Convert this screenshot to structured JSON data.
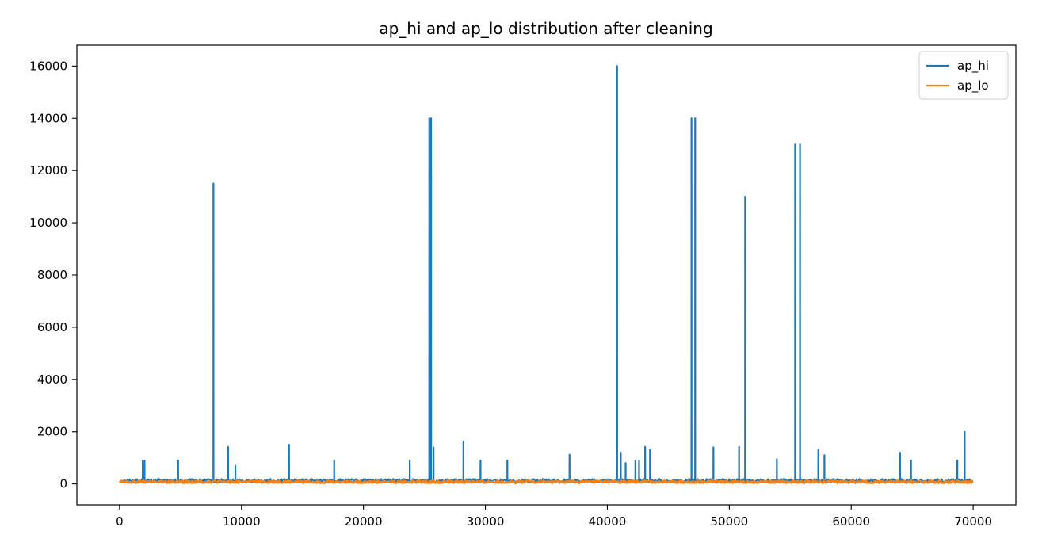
{
  "chart_data": {
    "type": "line",
    "title": "ap_hi and ap_lo distribution after cleaning",
    "xlabel": "",
    "ylabel": "",
    "xlim": [
      -3500,
      73500
    ],
    "ylim": [
      -800,
      16800
    ],
    "x_ticks": [
      0,
      10000,
      20000,
      30000,
      40000,
      50000,
      60000,
      70000
    ],
    "x_tick_labels": [
      "0",
      "10000",
      "20000",
      "30000",
      "40000",
      "50000",
      "60000",
      "70000"
    ],
    "y_ticks": [
      0,
      2000,
      4000,
      6000,
      8000,
      10000,
      12000,
      14000,
      16000
    ],
    "y_tick_labels": [
      "0",
      "2000",
      "4000",
      "6000",
      "8000",
      "10000",
      "12000",
      "14000",
      "16000"
    ],
    "grid": false,
    "legend_position": "top-right",
    "x_range": [
      0,
      70000
    ],
    "series": [
      {
        "name": "ap_hi",
        "color": "#1f77b4",
        "baseline": 120,
        "spikes": [
          {
            "x": 1900,
            "y": 900
          },
          {
            "x": 2050,
            "y": 900
          },
          {
            "x": 4800,
            "y": 900
          },
          {
            "x": 7700,
            "y": 11500
          },
          {
            "x": 8900,
            "y": 1420
          },
          {
            "x": 9500,
            "y": 700
          },
          {
            "x": 13900,
            "y": 1500
          },
          {
            "x": 17600,
            "y": 900
          },
          {
            "x": 23800,
            "y": 900
          },
          {
            "x": 25400,
            "y": 14000
          },
          {
            "x": 25550,
            "y": 14000
          },
          {
            "x": 25750,
            "y": 1400
          },
          {
            "x": 28200,
            "y": 1620
          },
          {
            "x": 29600,
            "y": 900
          },
          {
            "x": 31800,
            "y": 900
          },
          {
            "x": 36900,
            "y": 1120
          },
          {
            "x": 40800,
            "y": 16000
          },
          {
            "x": 41100,
            "y": 1200
          },
          {
            "x": 41500,
            "y": 800
          },
          {
            "x": 42300,
            "y": 900
          },
          {
            "x": 42600,
            "y": 900
          },
          {
            "x": 43100,
            "y": 1420
          },
          {
            "x": 43500,
            "y": 1300
          },
          {
            "x": 46900,
            "y": 14000
          },
          {
            "x": 47200,
            "y": 14000
          },
          {
            "x": 48700,
            "y": 1400
          },
          {
            "x": 50800,
            "y": 1420
          },
          {
            "x": 51300,
            "y": 11000
          },
          {
            "x": 53900,
            "y": 950
          },
          {
            "x": 55400,
            "y": 13000
          },
          {
            "x": 55800,
            "y": 13000
          },
          {
            "x": 57300,
            "y": 1300
          },
          {
            "x": 57800,
            "y": 1100
          },
          {
            "x": 64000,
            "y": 1200
          },
          {
            "x": 64900,
            "y": 900
          },
          {
            "x": 68700,
            "y": 900
          },
          {
            "x": 69300,
            "y": 2000
          }
        ]
      },
      {
        "name": "ap_lo",
        "color": "#ff7f0e",
        "baseline": 80,
        "spikes": []
      }
    ]
  }
}
